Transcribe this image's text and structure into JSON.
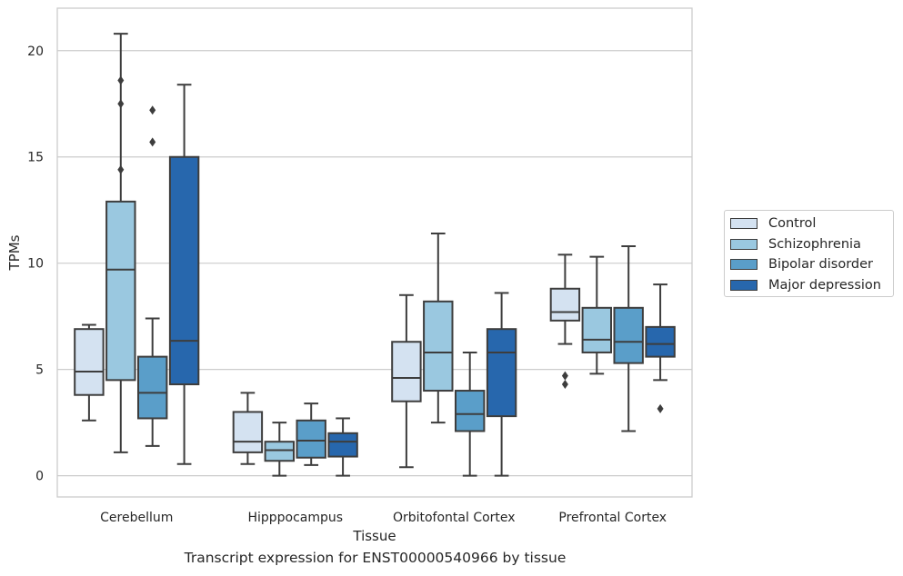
{
  "caption": "Transcript expression for ENST00000540966 by tissue",
  "chart_data": {
    "type": "boxplot",
    "xlabel": "Tissue",
    "ylabel": "TPMs",
    "ylim": [
      -1,
      22
    ],
    "yticks": [
      0,
      5,
      10,
      15,
      20
    ],
    "grid": "horizontal",
    "legend_position": "right",
    "categories": [
      "Cerebellum",
      "Hipppocampus",
      "Orbitofontal Cortex",
      "Prefrontal Cortex"
    ],
    "series": [
      {
        "name": "Control",
        "color": "#d4e2f1",
        "boxes": [
          {
            "min": 2.6,
            "q1": 3.8,
            "median": 4.9,
            "q3": 6.9,
            "max": 7.1,
            "outliers": []
          },
          {
            "min": 0.55,
            "q1": 1.1,
            "median": 1.6,
            "q3": 3.0,
            "max": 3.9,
            "outliers": []
          },
          {
            "min": 0.4,
            "q1": 3.5,
            "median": 4.6,
            "q3": 6.3,
            "max": 8.5,
            "outliers": []
          },
          {
            "min": 6.2,
            "q1": 7.3,
            "median": 7.7,
            "q3": 8.8,
            "max": 10.4,
            "outliers": [
              4.7,
              4.3
            ]
          }
        ]
      },
      {
        "name": "Schizophrenia",
        "color": "#9ac8e0",
        "boxes": [
          {
            "min": 1.1,
            "q1": 4.5,
            "median": 9.7,
            "q3": 12.9,
            "max": 20.8,
            "outliers": [
              18.6,
              17.5,
              14.4
            ]
          },
          {
            "min": 0.0,
            "q1": 0.7,
            "median": 1.2,
            "q3": 1.6,
            "max": 2.5,
            "outliers": []
          },
          {
            "min": 2.5,
            "q1": 4.0,
            "median": 5.8,
            "q3": 8.2,
            "max": 11.4,
            "outliers": []
          },
          {
            "min": 4.8,
            "q1": 5.8,
            "median": 6.4,
            "q3": 7.9,
            "max": 10.3,
            "outliers": []
          }
        ]
      },
      {
        "name": "Bipolar disorder",
        "color": "#5a9ec9",
        "boxes": [
          {
            "min": 1.4,
            "q1": 2.7,
            "median": 3.9,
            "q3": 5.6,
            "max": 7.4,
            "outliers": [
              17.2,
              15.7
            ]
          },
          {
            "min": 0.5,
            "q1": 0.85,
            "median": 1.65,
            "q3": 2.6,
            "max": 3.4,
            "outliers": []
          },
          {
            "min": 0.0,
            "q1": 2.1,
            "median": 2.9,
            "q3": 4.0,
            "max": 5.8,
            "outliers": []
          },
          {
            "min": 2.1,
            "q1": 5.3,
            "median": 6.3,
            "q3": 7.9,
            "max": 10.8,
            "outliers": []
          }
        ]
      },
      {
        "name": "Major depression",
        "color": "#2767ad",
        "boxes": [
          {
            "min": 0.55,
            "q1": 4.3,
            "median": 6.35,
            "q3": 15.0,
            "max": 18.4,
            "outliers": []
          },
          {
            "min": 0.0,
            "q1": 0.9,
            "median": 1.6,
            "q3": 2.0,
            "max": 2.7,
            "outliers": []
          },
          {
            "min": 0.0,
            "q1": 2.8,
            "median": 5.8,
            "q3": 6.9,
            "max": 8.6,
            "outliers": []
          },
          {
            "min": 4.5,
            "q1": 5.6,
            "median": 6.2,
            "q3": 7.0,
            "max": 9.0,
            "outliers": [
              3.15
            ]
          }
        ]
      }
    ]
  }
}
